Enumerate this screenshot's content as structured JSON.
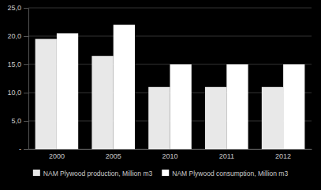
{
  "chart_data": {
    "type": "bar",
    "categories": [
      "2000",
      "2005",
      "2010",
      "2011",
      "2012"
    ],
    "series": [
      {
        "name": "NAM Plywood production, Million m3",
        "color": "#e8e8e8",
        "values": [
          19.5,
          16.5,
          11.0,
          11.0,
          11.0
        ]
      },
      {
        "name": "NAM Plywood consumption, Million m3",
        "color": "#ffffff",
        "values": [
          20.5,
          22.0,
          15.0,
          15.0,
          15.0
        ]
      }
    ],
    "ylim": [
      0,
      25
    ],
    "yticks": [
      {
        "value": 0,
        "label": "-"
      },
      {
        "value": 5.0,
        "label": "5,0"
      },
      {
        "value": 10.0,
        "label": "10,0"
      },
      {
        "value": 15.0,
        "label": "15,0"
      },
      {
        "value": 20.0,
        "label": "20,0"
      },
      {
        "value": 25.0,
        "label": "25,0"
      }
    ],
    "grid": true,
    "legend": "bottom"
  }
}
